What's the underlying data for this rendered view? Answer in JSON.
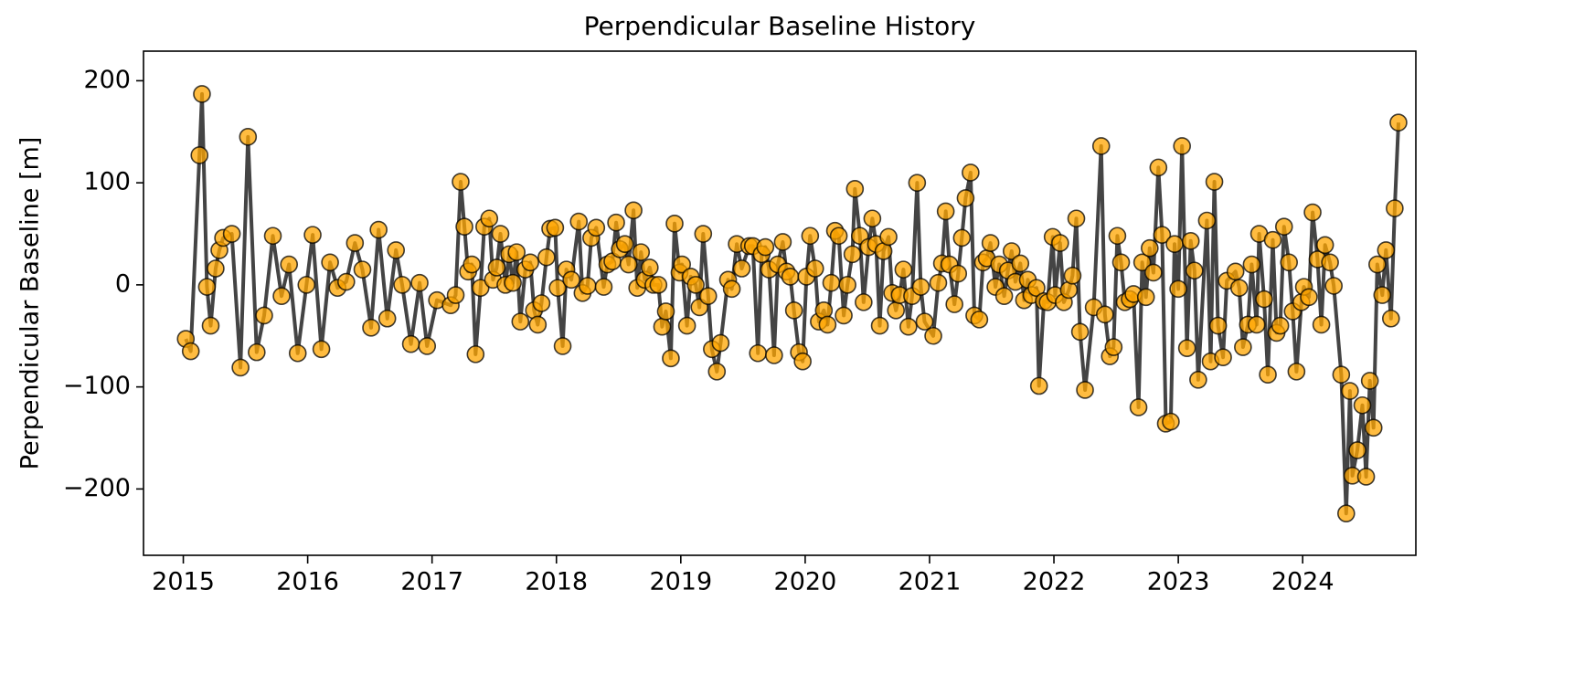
{
  "chart_data": {
    "type": "line",
    "title": "Perpendicular Baseline History",
    "ylabel": "Perpendicular Baseline [m]",
    "line_color": "#444444",
    "marker_color": "#ffa500",
    "grid": false,
    "xlim": [
      2014.68,
      2024.91
    ],
    "ylim": [
      -265,
      229
    ],
    "xticks": [
      2015,
      2016,
      2017,
      2018,
      2019,
      2020,
      2021,
      2022,
      2023,
      2024
    ],
    "yticks": [
      {
        "value": -200,
        "label": "−200"
      },
      {
        "value": -100,
        "label": "−100"
      },
      0,
      100,
      200
    ],
    "x": [
      2015.02,
      2015.06,
      2015.13,
      2015.15,
      2015.19,
      2015.22,
      2015.26,
      2015.29,
      2015.32,
      2015.39,
      2015.46,
      2015.52,
      2015.59,
      2015.65,
      2015.72,
      2015.79,
      2015.85,
      2015.92,
      2015.99,
      2016.04,
      2016.11,
      2016.18,
      2016.24,
      2016.31,
      2016.38,
      2016.44,
      2016.51,
      2016.57,
      2016.64,
      2016.71,
      2016.76,
      2016.83,
      2016.9,
      2016.96,
      2017.04,
      2017.15,
      2017.19,
      2017.23,
      2017.26,
      2017.29,
      2017.32,
      2017.35,
      2017.39,
      2017.42,
      2017.46,
      2017.49,
      2017.52,
      2017.55,
      2017.59,
      2017.62,
      2017.65,
      2017.68,
      2017.71,
      2017.75,
      2017.79,
      2017.82,
      2017.85,
      2017.88,
      2017.92,
      2017.95,
      2017.99,
      2018.01,
      2018.05,
      2018.08,
      2018.12,
      2018.18,
      2018.21,
      2018.25,
      2018.28,
      2018.32,
      2018.38,
      2018.41,
      2018.45,
      2018.48,
      2018.51,
      2018.55,
      2018.58,
      2018.62,
      2018.65,
      2018.68,
      2018.71,
      2018.75,
      2018.78,
      2018.82,
      2018.85,
      2018.88,
      2018.92,
      2018.95,
      2018.99,
      2019.01,
      2019.05,
      2019.08,
      2019.12,
      2019.15,
      2019.18,
      2019.22,
      2019.25,
      2019.29,
      2019.32,
      2019.38,
      2019.41,
      2019.45,
      2019.49,
      2019.55,
      2019.58,
      2019.62,
      2019.65,
      2019.68,
      2019.71,
      2019.75,
      2019.78,
      2019.82,
      2019.85,
      2019.88,
      2019.91,
      2019.95,
      2019.98,
      2020.01,
      2020.04,
      2020.08,
      2020.11,
      2020.15,
      2020.18,
      2020.21,
      2020.24,
      2020.27,
      2020.31,
      2020.34,
      2020.38,
      2020.4,
      2020.44,
      2020.47,
      2020.51,
      2020.54,
      2020.57,
      2020.6,
      2020.63,
      2020.67,
      2020.7,
      2020.73,
      2020.76,
      2020.79,
      2020.83,
      2020.86,
      2020.9,
      2020.93,
      2020.96,
      2021.03,
      2021.07,
      2021.1,
      2021.13,
      2021.16,
      2021.2,
      2021.23,
      2021.26,
      2021.29,
      2021.33,
      2021.36,
      2021.4,
      2021.43,
      2021.46,
      2021.49,
      2021.53,
      2021.56,
      2021.6,
      2021.63,
      2021.66,
      2021.69,
      2021.73,
      2021.76,
      2021.79,
      2021.82,
      2021.86,
      2021.88,
      2021.92,
      2021.95,
      2021.99,
      2022.01,
      2022.05,
      2022.08,
      2022.12,
      2022.15,
      2022.18,
      2022.21,
      2022.25,
      2022.32,
      2022.38,
      2022.41,
      2022.45,
      2022.48,
      2022.51,
      2022.54,
      2022.57,
      2022.61,
      2022.64,
      2022.68,
      2022.71,
      2022.74,
      2022.77,
      2022.8,
      2022.84,
      2022.87,
      2022.9,
      2022.94,
      2022.97,
      2023.0,
      2023.03,
      2023.07,
      2023.1,
      2023.13,
      2023.16,
      2023.23,
      2023.26,
      2023.29,
      2023.32,
      2023.36,
      2023.39,
      2023.46,
      2023.49,
      2023.52,
      2023.56,
      2023.59,
      2023.63,
      2023.65,
      2023.69,
      2023.72,
      2023.76,
      2023.79,
      2023.82,
      2023.85,
      2023.89,
      2023.92,
      2023.95,
      2023.99,
      2024.01,
      2024.05,
      2024.08,
      2024.12,
      2024.15,
      2024.18,
      2024.22,
      2024.25,
      2024.31,
      2024.35,
      2024.38,
      2024.4,
      2024.44,
      2024.48,
      2024.51,
      2024.54,
      2024.57,
      2024.6,
      2024.64,
      2024.67,
      2024.71,
      2024.74,
      2024.77
    ],
    "values": [
      -53,
      -65,
      127,
      187,
      -2,
      -40,
      16,
      34,
      46,
      50,
      -81,
      145,
      -66,
      -30,
      48,
      -11,
      20,
      -67,
      0,
      49,
      -63,
      22,
      -3,
      3,
      41,
      15,
      -42,
      54,
      -33,
      34,
      0,
      -58,
      2,
      -60,
      -15,
      -20,
      -10,
      101,
      57,
      13,
      20,
      -68,
      -3,
      57,
      65,
      5,
      17,
      50,
      0,
      30,
      2,
      32,
      -36,
      15,
      22,
      -25,
      -39,
      -18,
      27,
      55,
      56,
      -3,
      -60,
      15,
      5,
      62,
      -8,
      -1,
      46,
      56,
      -2,
      20,
      23,
      61,
      35,
      40,
      20,
      73,
      -3,
      32,
      5,
      17,
      0,
      0,
      -41,
      -26,
      -72,
      60,
      12,
      20,
      -40,
      8,
      0,
      -22,
      50,
      -11,
      -63,
      -85,
      -57,
      5,
      -4,
      40,
      16,
      38,
      38,
      -67,
      30,
      37,
      15,
      -69,
      20,
      42,
      13,
      8,
      -25,
      -66,
      -75,
      8,
      48,
      16,
      -36,
      -25,
      -39,
      2,
      53,
      48,
      -30,
      0,
      30,
      94,
      48,
      -17,
      37,
      65,
      40,
      -40,
      33,
      47,
      -8,
      -25,
      -10,
      15,
      -41,
      -11,
      100,
      -2,
      -36,
      -50,
      2,
      21,
      72,
      20,
      -19,
      11,
      46,
      85,
      110,
      -30,
      -34,
      22,
      26,
      41,
      -2,
      20,
      -11,
      14,
      33,
      3,
      21,
      -15,
      5,
      -10,
      -3,
      -99,
      -16,
      -17,
      47,
      -10,
      41,
      -17,
      -5,
      9,
      65,
      -46,
      -103,
      -22,
      136,
      -29,
      -70,
      -61,
      48,
      22,
      -17,
      -14,
      -9,
      -120,
      22,
      -12,
      36,
      12,
      115,
      49,
      -136,
      -134,
      40,
      -4,
      136,
      -62,
      43,
      14,
      -93,
      63,
      -75,
      101,
      -40,
      -71,
      4,
      13,
      -3,
      -61,
      -39,
      20,
      -39,
      50,
      -14,
      -88,
      44,
      -47,
      -40,
      57,
      22,
      -26,
      -85,
      -17,
      -2,
      -12,
      71,
      25,
      -39,
      39,
      22,
      -1,
      -88,
      -224,
      -104,
      -187,
      -162,
      -118,
      -188,
      -94,
      -140,
      20,
      -10,
      34,
      -33,
      75,
      159
    ]
  }
}
